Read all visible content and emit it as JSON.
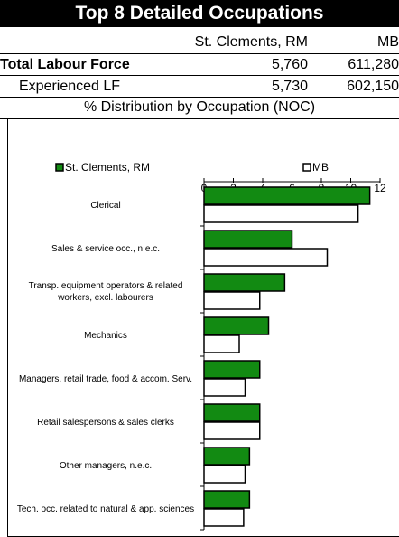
{
  "header": {
    "title": "Top 8 Detailed Occupations",
    "columns": [
      "St. Clements, RM",
      "MB"
    ],
    "rows": [
      {
        "label": "Total Labour Force",
        "values": [
          "5,760",
          "611,280"
        ]
      },
      {
        "label": "Experienced LF",
        "values": [
          "5,730",
          "602,150"
        ]
      }
    ],
    "section": "% Distribution by Occupation (NOC)"
  },
  "chart_data": {
    "type": "bar",
    "orientation": "horizontal",
    "categories": [
      "Clerical",
      "Sales & service occ., n.e.c.",
      "Transp. equipment operators & related workers, excl. labourers",
      "Mechanics",
      "Managers, retail trade, food & accom. Serv.",
      "Retail salespersons & sales clerks",
      "Other managers, n.e.c.",
      "Tech. occ. related to natural & app. sciences"
    ],
    "series": [
      {
        "name": "St. Clements, RM",
        "color": "#128a12",
        "values": [
          11.3,
          6.0,
          5.5,
          4.4,
          3.8,
          3.8,
          3.1,
          3.1
        ]
      },
      {
        "name": "MB",
        "color": "#ffffff",
        "values": [
          10.5,
          8.4,
          3.8,
          2.4,
          2.8,
          3.8,
          2.8,
          2.7
        ]
      }
    ],
    "xlim": [
      0,
      12
    ],
    "xticks": [
      0,
      2,
      4,
      6,
      8,
      10,
      12
    ],
    "legend": "top"
  }
}
